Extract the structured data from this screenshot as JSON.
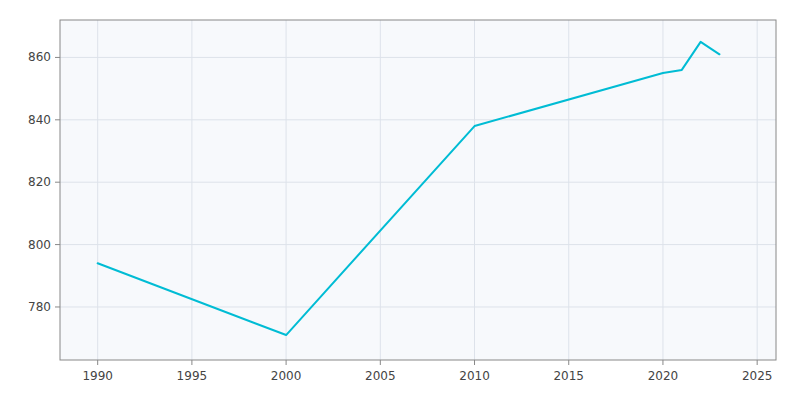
{
  "chart_data": {
    "type": "line",
    "x": [
      1990,
      2000,
      2010,
      2020,
      2021,
      2022,
      2023
    ],
    "values": [
      794,
      771,
      838,
      855,
      856,
      865,
      861
    ],
    "color": "#00BCD4",
    "xlim": [
      1988,
      2026
    ],
    "ylim": [
      763,
      872
    ],
    "xticks": [
      1990,
      1995,
      2000,
      2005,
      2010,
      2015,
      2020,
      2025
    ],
    "yticks": [
      780,
      800,
      820,
      840,
      860
    ],
    "grid": true
  }
}
